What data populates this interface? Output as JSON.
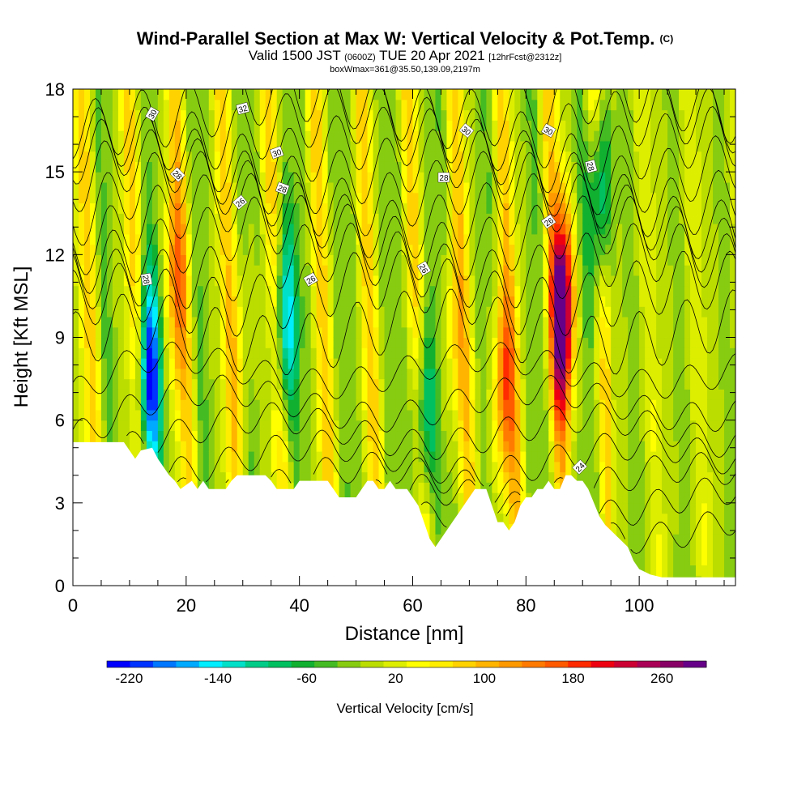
{
  "header": {
    "title_main": "Wind-Parallel Section at Max W: Vertical Velocity & Pot.Temp.",
    "title_copyright": "(C)",
    "valid_prefix": "Valid 1500 JST",
    "valid_utc": "(0600Z)",
    "valid_date": "TUE 20 Apr 2021",
    "forecast": "[12hrFcst@2312z]",
    "box_info": "boxWmax=361@35.50,139.09,2197m"
  },
  "chart_data": {
    "type": "heatmap",
    "xlabel": "Distance [nm]",
    "ylabel": "Height [Kft MSL]",
    "xlim": [
      0,
      117
    ],
    "ylim": [
      0,
      18
    ],
    "x_ticks": [
      0,
      20,
      40,
      60,
      80,
      100
    ],
    "y_ticks": [
      0,
      3,
      6,
      9,
      12,
      15,
      18
    ],
    "colorbar": {
      "title": "Vertical Velocity [cm/s]",
      "range": [
        -240,
        300
      ],
      "tick_values": [
        -220,
        -140,
        -60,
        20,
        100,
        180,
        260
      ],
      "tick_labels": [
        "-220",
        "-140",
        "-60",
        "20",
        "100",
        "180",
        "260"
      ],
      "colors": [
        "#0000ff",
        "#0033ff",
        "#0077ff",
        "#00aaff",
        "#00eeff",
        "#00e0c8",
        "#00cc88",
        "#00c060",
        "#11b030",
        "#44bb22",
        "#88cc11",
        "#bbdd00",
        "#ddee00",
        "#ffff00",
        "#ffee00",
        "#ffd200",
        "#ffb400",
        "#ff9900",
        "#ff7a00",
        "#ff5a00",
        "#ff2a00",
        "#ee0011",
        "#cc0033",
        "#aa0055",
        "#880066",
        "#660088"
      ]
    },
    "velocity_features": [
      {
        "x": 13.5,
        "y": 7.5,
        "w": -220
      },
      {
        "x": 18,
        "y": 11,
        "w": 100
      },
      {
        "x": 37.5,
        "y": 9.5,
        "w": -150
      },
      {
        "x": 30,
        "y": 9,
        "w": 40
      },
      {
        "x": 62,
        "y": 6,
        "w": -130
      },
      {
        "x": 67,
        "y": 9,
        "w": 60
      },
      {
        "x": 76,
        "y": 7,
        "w": 140
      },
      {
        "x": 86.5,
        "y": 10,
        "w": 300
      },
      {
        "x": 93,
        "y": 14,
        "w": -160
      }
    ],
    "terrain_profile": {
      "x": [
        0,
        9,
        10,
        11,
        12,
        14,
        15,
        16,
        17,
        18,
        19,
        21,
        22,
        23,
        24,
        25,
        26,
        27,
        28,
        29,
        34,
        35,
        36,
        39,
        40,
        45,
        46,
        47,
        50,
        51,
        52,
        53,
        54,
        55,
        56,
        57,
        59,
        60,
        61,
        62,
        63,
        64,
        65,
        66,
        67,
        68,
        69,
        70,
        71,
        72,
        73,
        74,
        75,
        76,
        77,
        78,
        79,
        80,
        81,
        82,
        83,
        84,
        85,
        86,
        87,
        88,
        89,
        90,
        91,
        92,
        93,
        94,
        95,
        96,
        97,
        98,
        99,
        100,
        102,
        104,
        106,
        108,
        110,
        114,
        117
      ],
      "height": [
        5.2,
        5.2,
        4.9,
        4.6,
        4.9,
        5.0,
        4.6,
        4.3,
        4.0,
        3.8,
        3.5,
        3.8,
        3.5,
        3.8,
        3.5,
        3.5,
        3.5,
        3.5,
        3.8,
        4.0,
        4.0,
        3.8,
        3.5,
        3.5,
        3.8,
        3.8,
        3.5,
        3.2,
        3.2,
        3.5,
        3.8,
        3.8,
        3.5,
        3.5,
        3.8,
        3.5,
        3.5,
        3.2,
        2.9,
        2.3,
        1.7,
        1.4,
        1.7,
        2.0,
        2.3,
        2.6,
        2.9,
        3.2,
        3.5,
        3.5,
        3.5,
        2.9,
        2.3,
        2.3,
        2.0,
        2.3,
        2.9,
        3.2,
        3.2,
        3.5,
        3.5,
        3.8,
        3.5,
        3.5,
        4.0,
        4.0,
        3.8,
        3.8,
        3.5,
        3.0,
        2.5,
        2.2,
        2.0,
        1.8,
        1.6,
        1.4,
        0.9,
        0.6,
        0.4,
        0.3,
        0.3,
        0.3,
        0.3,
        0.3,
        0.3
      ]
    },
    "contour_labels": [
      {
        "text": "30",
        "x": 14,
        "y": 17.1,
        "angle": -60
      },
      {
        "text": "32",
        "x": 30,
        "y": 17.3,
        "angle": -15
      },
      {
        "text": "30",
        "x": 36,
        "y": 15.7,
        "angle": -20
      },
      {
        "text": "28",
        "x": 18.5,
        "y": 14.9,
        "angle": 45
      },
      {
        "text": "26",
        "x": 29.5,
        "y": 13.9,
        "angle": -40
      },
      {
        "text": "28",
        "x": 37,
        "y": 14.4,
        "angle": 20
      },
      {
        "text": "28",
        "x": 13,
        "y": 11.1,
        "angle": 80
      },
      {
        "text": "26",
        "x": 42,
        "y": 11.1,
        "angle": -30
      },
      {
        "text": "30",
        "x": 69.5,
        "y": 16.5,
        "angle": 40
      },
      {
        "text": "28",
        "x": 65.5,
        "y": 14.8,
        "angle": 0
      },
      {
        "text": "30",
        "x": 84,
        "y": 16.5,
        "angle": 30
      },
      {
        "text": "28",
        "x": 91.5,
        "y": 15.2,
        "angle": 75
      },
      {
        "text": "26",
        "x": 62,
        "y": 11.5,
        "angle": 60
      },
      {
        "text": "26",
        "x": 84,
        "y": 13.2,
        "angle": -35
      },
      {
        "text": "24",
        "x": 89.5,
        "y": 4.3,
        "angle": -45
      }
    ]
  }
}
